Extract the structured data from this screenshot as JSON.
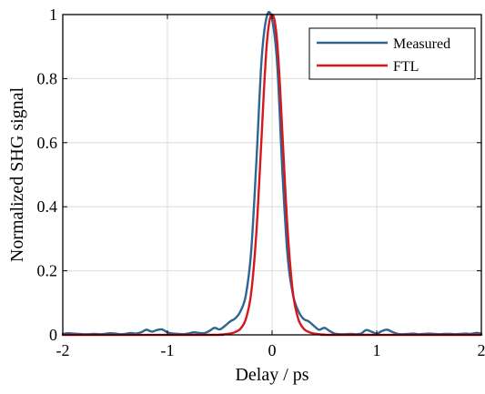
{
  "chart_data": {
    "type": "line",
    "xlabel": "Delay / ps",
    "ylabel": "Normalized SHG signal",
    "xlim": [
      -2,
      2
    ],
    "ylim": [
      0,
      1
    ],
    "x_ticks": [
      -2,
      -1,
      0,
      1,
      2
    ],
    "x_tick_labels": [
      "-2",
      "-1",
      "0",
      "1",
      "2"
    ],
    "y_ticks": [
      0,
      0.2,
      0.4,
      0.6,
      0.8,
      1
    ],
    "y_tick_labels": [
      "0",
      "0.2",
      "0.4",
      "0.6",
      "0.8",
      "1"
    ],
    "grid": true,
    "legend_position": "top-right",
    "series": [
      {
        "name": "Measured",
        "color": "#2e6591",
        "x": [
          -2.0,
          -1.95,
          -1.9,
          -1.85,
          -1.8,
          -1.75,
          -1.7,
          -1.65,
          -1.6,
          -1.55,
          -1.5,
          -1.45,
          -1.4,
          -1.35,
          -1.3,
          -1.25,
          -1.2,
          -1.15,
          -1.1,
          -1.05,
          -1.0,
          -0.95,
          -0.9,
          -0.85,
          -0.8,
          -0.75,
          -0.7,
          -0.65,
          -0.6,
          -0.55,
          -0.5,
          -0.45,
          -0.4,
          -0.35,
          -0.3,
          -0.25,
          -0.2,
          -0.15,
          -0.1,
          -0.05,
          0.0,
          0.05,
          0.1,
          0.15,
          0.2,
          0.25,
          0.3,
          0.35,
          0.4,
          0.45,
          0.5,
          0.55,
          0.6,
          0.65,
          0.7,
          0.75,
          0.8,
          0.85,
          0.9,
          0.95,
          1.0,
          1.05,
          1.1,
          1.15,
          1.2,
          1.25,
          1.3,
          1.35,
          1.4,
          1.45,
          1.5,
          1.55,
          1.6,
          1.65,
          1.7,
          1.75,
          1.8,
          1.85,
          1.9,
          1.95,
          2.0
        ],
        "values": [
          0.003,
          0.005,
          0.004,
          0.003,
          0.002,
          0.002,
          0.003,
          0.002,
          0.003,
          0.005,
          0.004,
          0.002,
          0.003,
          0.006,
          0.004,
          0.008,
          0.016,
          0.01,
          0.015,
          0.017,
          0.008,
          0.004,
          0.003,
          0.002,
          0.004,
          0.008,
          0.006,
          0.005,
          0.012,
          0.022,
          0.017,
          0.028,
          0.042,
          0.052,
          0.075,
          0.125,
          0.26,
          0.54,
          0.86,
          0.995,
          0.985,
          0.84,
          0.5,
          0.24,
          0.125,
          0.075,
          0.05,
          0.042,
          0.028,
          0.016,
          0.022,
          0.012,
          0.004,
          0.002,
          0.002,
          0.003,
          0.002,
          0.004,
          0.015,
          0.01,
          0.004,
          0.012,
          0.016,
          0.009,
          0.003,
          0.002,
          0.003,
          0.004,
          0.002,
          0.003,
          0.004,
          0.003,
          0.002,
          0.003,
          0.003,
          0.002,
          0.003,
          0.004,
          0.003,
          0.006,
          0.004
        ]
      },
      {
        "name": "FTL",
        "color": "#d7171e",
        "x": [
          -2.0,
          -0.6,
          -0.5,
          -0.45,
          -0.4,
          -0.35,
          -0.3,
          -0.25,
          -0.2,
          -0.15,
          -0.1,
          -0.075,
          -0.05,
          -0.025,
          0.0,
          0.025,
          0.05,
          0.075,
          0.1,
          0.15,
          0.2,
          0.25,
          0.3,
          0.35,
          0.4,
          0.45,
          0.5,
          0.6,
          2.0
        ],
        "values": [
          0.0,
          0.0,
          0.001,
          0.002,
          0.004,
          0.009,
          0.02,
          0.05,
          0.13,
          0.32,
          0.62,
          0.78,
          0.91,
          0.98,
          1.0,
          0.98,
          0.91,
          0.78,
          0.62,
          0.32,
          0.13,
          0.05,
          0.02,
          0.009,
          0.004,
          0.002,
          0.001,
          0.0,
          0.0
        ]
      }
    ]
  }
}
